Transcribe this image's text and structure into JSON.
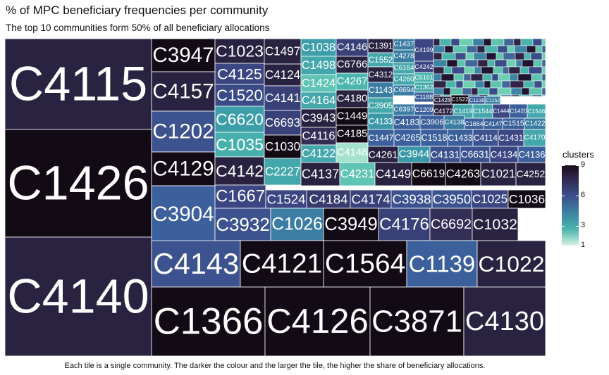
{
  "chart_data": {
    "type": "treemap",
    "title": "% of MPC beneficiary frequencies per community",
    "subtitle": "The top 10 communities form 50% of all beneficiary allocations",
    "caption": "Each tile is a single community. The darker the colour and the larger the tile, the higher the share of beneficiary allocations.",
    "legend": {
      "title": "clusters",
      "placement": "right",
      "ticks": [
        9,
        6,
        3,
        1
      ],
      "range": [
        1,
        9
      ]
    },
    "tiles": [
      {
        "label": "C4115",
        "cluster": 8.3
      },
      {
        "label": "C1426",
        "cluster": 9
      },
      {
        "label": "C4140",
        "cluster": 8.3
      },
      {
        "label": "C3947",
        "cluster": 9
      },
      {
        "label": "C4157",
        "cluster": 8.3
      },
      {
        "label": "C1202",
        "cluster": 6.5
      },
      {
        "label": "C4129",
        "cluster": 9
      },
      {
        "label": "C3904",
        "cluster": 6
      },
      {
        "label": "C1023",
        "cluster": 8.3
      },
      {
        "label": "C4125",
        "cluster": 7
      },
      {
        "label": "C1520",
        "cluster": 6.8
      },
      {
        "label": "C6620",
        "cluster": 3.8
      },
      {
        "label": "C1035",
        "cluster": 3.2
      },
      {
        "label": "C4142",
        "cluster": 8.3
      },
      {
        "label": "C1497",
        "cluster": 8.3
      },
      {
        "label": "C4124",
        "cluster": 8.3
      },
      {
        "label": "C4141",
        "cluster": 7.2
      },
      {
        "label": "C6693",
        "cluster": 7.2
      },
      {
        "label": "C1030",
        "cluster": 9
      },
      {
        "label": "C2227",
        "cluster": 3.5
      },
      {
        "label": "C1038",
        "cluster": 3.8
      },
      {
        "label": "C1498",
        "cluster": 3.5
      },
      {
        "label": "C1424",
        "cluster": 2.5
      },
      {
        "label": "C4164",
        "cluster": 3.5
      },
      {
        "label": "C3943",
        "cluster": 8.3
      },
      {
        "label": "C4116",
        "cluster": 8
      },
      {
        "label": "C4122",
        "cluster": 3.5
      },
      {
        "label": "C4146",
        "cluster": 7.2
      },
      {
        "label": "C6766",
        "cluster": 8.3
      },
      {
        "label": "C4267",
        "cluster": 3
      },
      {
        "label": "C4180",
        "cluster": 8.3
      },
      {
        "label": "C1449",
        "cluster": 9
      },
      {
        "label": "C4185",
        "cluster": 9
      },
      {
        "label": "C4148",
        "cluster": 1.5
      },
      {
        "label": "C4137",
        "cluster": 8.3
      },
      {
        "label": "C4231",
        "cluster": 2.5
      },
      {
        "label": "C1391",
        "cluster": 8.3
      },
      {
        "label": "C1552",
        "cluster": 3.5
      },
      {
        "label": "C4312",
        "cluster": 8.3
      },
      {
        "label": "C1143",
        "cluster": 5
      },
      {
        "label": "C3905",
        "cluster": 3.5
      },
      {
        "label": "C4133",
        "cluster": 4
      },
      {
        "label": "C1447",
        "cluster": 6
      },
      {
        "label": "C4261",
        "cluster": 8.3
      },
      {
        "label": "C4149",
        "cluster": 8.3
      },
      {
        "label": "C6619",
        "cluster": 9
      },
      {
        "label": "C4263",
        "cluster": 9
      },
      {
        "label": "C1021",
        "cluster": 8.3
      },
      {
        "label": "C4252",
        "cluster": 8.3
      },
      {
        "label": "C1437",
        "cluster": 5
      },
      {
        "label": "C4278",
        "cluster": 5
      },
      {
        "label": "C4199",
        "cluster": 7
      },
      {
        "label": "C6184",
        "cluster": 3.5
      },
      {
        "label": "C4242",
        "cluster": 7
      },
      {
        "label": "C6161",
        "cluster": 3
      },
      {
        "label": "C4260",
        "cluster": 3.5
      },
      {
        "label": "C1362",
        "cluster": 3.5
      },
      {
        "label": "C6694",
        "cluster": 5
      },
      {
        "label": "C1188",
        "cluster": 6
      },
      {
        "label": "C6397",
        "cluster": 5
      },
      {
        "label": "C1209",
        "cluster": 6
      },
      {
        "label": "C4172",
        "cluster": 8.3
      },
      {
        "label": "C1419",
        "cluster": 3.5
      },
      {
        "label": "C1544",
        "cluster": 3.5
      },
      {
        "label": "C1444",
        "cluster": 7
      },
      {
        "label": "C1420",
        "cluster": 6
      },
      {
        "label": "C1546",
        "cluster": 3.5
      },
      {
        "label": "C1428",
        "cluster": 8.3
      },
      {
        "label": "C1522",
        "cluster": 9
      },
      {
        "label": "C1136",
        "cluster": 6
      },
      {
        "label": "C1152",
        "cluster": 5
      },
      {
        "label": "C4183",
        "cluster": 6
      },
      {
        "label": "C3906",
        "cluster": 6
      },
      {
        "label": "C4138",
        "cluster": 5
      },
      {
        "label": "C1664",
        "cluster": 6
      },
      {
        "label": "C4147",
        "cluster": 6
      },
      {
        "label": "C1515",
        "cluster": 6
      },
      {
        "label": "C1422",
        "cluster": 5
      },
      {
        "label": "C4265",
        "cluster": 6
      },
      {
        "label": "C1518",
        "cluster": 6
      },
      {
        "label": "C1433",
        "cluster": 6
      },
      {
        "label": "C4114",
        "cluster": 6.5
      },
      {
        "label": "C1431",
        "cluster": 7
      },
      {
        "label": "C4170",
        "cluster": 3.5
      },
      {
        "label": "C3944",
        "cluster": 4
      },
      {
        "label": "C4131",
        "cluster": 6.5
      },
      {
        "label": "C6631",
        "cluster": 6.5
      },
      {
        "label": "C4134",
        "cluster": 7
      },
      {
        "label": "C4136",
        "cluster": 6
      },
      {
        "label": "C1667",
        "cluster": 7
      },
      {
        "label": "C1524",
        "cluster": 7
      },
      {
        "label": "C4184",
        "cluster": 7.5
      },
      {
        "label": "C4174",
        "cluster": 7.2
      },
      {
        "label": "C3938",
        "cluster": 6.5
      },
      {
        "label": "C3950",
        "cluster": 6.5
      },
      {
        "label": "C1025",
        "cluster": 7
      },
      {
        "label": "C1036",
        "cluster": 9
      },
      {
        "label": "C3932",
        "cluster": 6.5
      },
      {
        "label": "C1026",
        "cluster": 5
      },
      {
        "label": "C3949",
        "cluster": 9
      },
      {
        "label": "C4176",
        "cluster": 7.2
      },
      {
        "label": "C6692",
        "cluster": 8
      },
      {
        "label": "C1032",
        "cluster": 8.3
      },
      {
        "label": "C4143",
        "cluster": 6.5
      },
      {
        "label": "C4121",
        "cluster": 9
      },
      {
        "label": "C1564",
        "cluster": 9
      },
      {
        "label": "C1139",
        "cluster": 6
      },
      {
        "label": "C1022",
        "cluster": 8.3
      },
      {
        "label": "C1366",
        "cluster": 9
      },
      {
        "label": "C4126",
        "cluster": 9
      },
      {
        "label": "C3871",
        "cluster": 9
      },
      {
        "label": "C4130",
        "cluster": 8.3
      }
    ]
  }
}
